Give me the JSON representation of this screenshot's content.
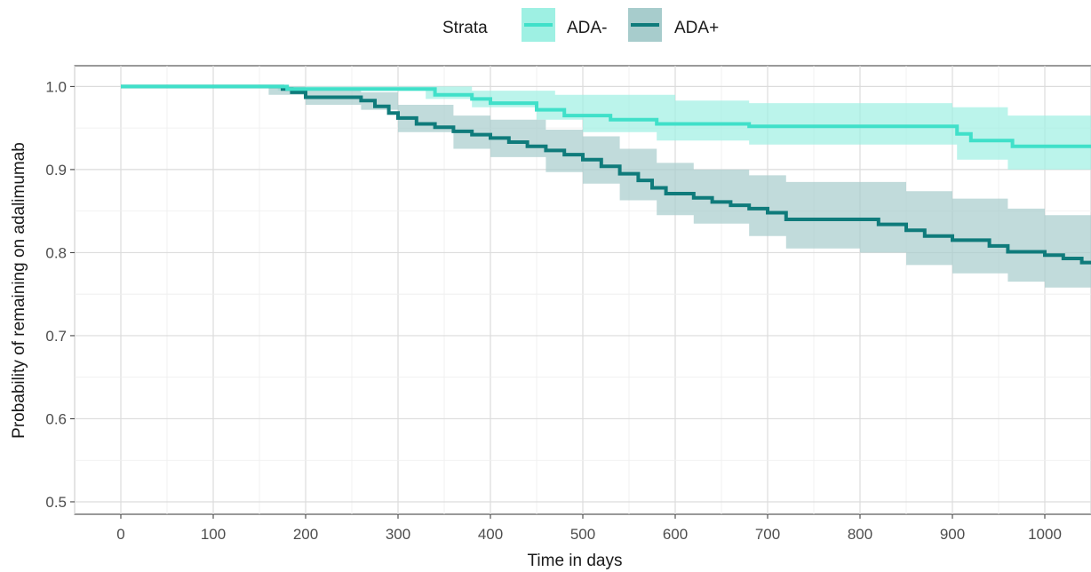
{
  "chart_data": {
    "type": "line",
    "subtype": "kaplan-meier",
    "xlabel": "Time in days",
    "ylabel": "Probability of remaining on adalimumab",
    "xlim": [
      -50,
      1050
    ],
    "ylim": [
      0.485,
      1.025
    ],
    "x_ticks": [
      "0",
      "100",
      "200",
      "300",
      "400",
      "500",
      "600",
      "700",
      "800",
      "900",
      "1000"
    ],
    "y_ticks": [
      "0.5",
      "0.6",
      "0.7",
      "0.8",
      "0.9",
      "1.0"
    ],
    "grid": true,
    "legend": {
      "title": "Strata",
      "position": "top"
    },
    "series": [
      {
        "name": "ADA-",
        "color": "#40e0c9",
        "band_color": "#9ef0e3",
        "steps": [
          [
            0,
            1.0
          ],
          [
            170,
            1.0
          ],
          [
            180,
            0.997
          ],
          [
            330,
            0.997
          ],
          [
            340,
            0.99
          ],
          [
            380,
            0.985
          ],
          [
            400,
            0.98
          ],
          [
            450,
            0.972
          ],
          [
            480,
            0.965
          ],
          [
            530,
            0.96
          ],
          [
            580,
            0.955
          ],
          [
            680,
            0.952
          ],
          [
            900,
            0.952
          ],
          [
            905,
            0.943
          ],
          [
            920,
            0.935
          ],
          [
            960,
            0.935
          ],
          [
            965,
            0.928
          ],
          [
            1050,
            0.928
          ]
        ],
        "upper": [
          [
            0,
            1.0
          ],
          [
            330,
            1.0
          ],
          [
            380,
            0.995
          ],
          [
            470,
            0.99
          ],
          [
            600,
            0.983
          ],
          [
            680,
            0.98
          ],
          [
            800,
            0.98
          ],
          [
            900,
            0.975
          ],
          [
            960,
            0.965
          ],
          [
            1050,
            0.958
          ]
        ],
        "lower": [
          [
            0,
            1.0
          ],
          [
            170,
            0.995
          ],
          [
            330,
            0.985
          ],
          [
            380,
            0.975
          ],
          [
            450,
            0.96
          ],
          [
            500,
            0.945
          ],
          [
            580,
            0.935
          ],
          [
            680,
            0.93
          ],
          [
            880,
            0.93
          ],
          [
            905,
            0.912
          ],
          [
            960,
            0.9
          ],
          [
            1050,
            0.898
          ]
        ]
      },
      {
        "name": "ADA+",
        "color": "#0f7b7b",
        "band_color": "#a7cccc",
        "steps": [
          [
            0,
            1.0
          ],
          [
            160,
            1.0
          ],
          [
            175,
            0.997
          ],
          [
            185,
            0.993
          ],
          [
            200,
            0.987
          ],
          [
            260,
            0.983
          ],
          [
            275,
            0.976
          ],
          [
            290,
            0.968
          ],
          [
            300,
            0.962
          ],
          [
            320,
            0.955
          ],
          [
            340,
            0.951
          ],
          [
            360,
            0.946
          ],
          [
            380,
            0.942
          ],
          [
            400,
            0.938
          ],
          [
            420,
            0.933
          ],
          [
            440,
            0.928
          ],
          [
            460,
            0.923
          ],
          [
            480,
            0.918
          ],
          [
            500,
            0.912
          ],
          [
            520,
            0.904
          ],
          [
            540,
            0.895
          ],
          [
            560,
            0.887
          ],
          [
            575,
            0.878
          ],
          [
            590,
            0.871
          ],
          [
            620,
            0.866
          ],
          [
            640,
            0.861
          ],
          [
            660,
            0.857
          ],
          [
            680,
            0.853
          ],
          [
            700,
            0.848
          ],
          [
            720,
            0.84
          ],
          [
            800,
            0.84
          ],
          [
            820,
            0.834
          ],
          [
            850,
            0.827
          ],
          [
            870,
            0.82
          ],
          [
            900,
            0.815
          ],
          [
            940,
            0.808
          ],
          [
            960,
            0.801
          ],
          [
            1000,
            0.797
          ],
          [
            1020,
            0.793
          ],
          [
            1040,
            0.788
          ],
          [
            1050,
            0.788
          ]
        ],
        "upper": [
          [
            0,
            1.0
          ],
          [
            160,
            1.0
          ],
          [
            200,
            0.995
          ],
          [
            260,
            0.993
          ],
          [
            300,
            0.978
          ],
          [
            360,
            0.965
          ],
          [
            400,
            0.96
          ],
          [
            460,
            0.948
          ],
          [
            500,
            0.94
          ],
          [
            540,
            0.925
          ],
          [
            580,
            0.908
          ],
          [
            620,
            0.9
          ],
          [
            680,
            0.893
          ],
          [
            720,
            0.885
          ],
          [
            800,
            0.885
          ],
          [
            850,
            0.874
          ],
          [
            900,
            0.865
          ],
          [
            960,
            0.853
          ],
          [
            1000,
            0.845
          ],
          [
            1050,
            0.838
          ]
        ],
        "lower": [
          [
            0,
            1.0
          ],
          [
            160,
            0.99
          ],
          [
            200,
            0.978
          ],
          [
            260,
            0.972
          ],
          [
            300,
            0.945
          ],
          [
            360,
            0.925
          ],
          [
            400,
            0.915
          ],
          [
            460,
            0.897
          ],
          [
            500,
            0.883
          ],
          [
            540,
            0.863
          ],
          [
            580,
            0.845
          ],
          [
            620,
            0.835
          ],
          [
            680,
            0.82
          ],
          [
            720,
            0.805
          ],
          [
            800,
            0.8
          ],
          [
            850,
            0.785
          ],
          [
            900,
            0.775
          ],
          [
            960,
            0.765
          ],
          [
            1000,
            0.758
          ],
          [
            1050,
            0.752
          ]
        ]
      }
    ]
  }
}
